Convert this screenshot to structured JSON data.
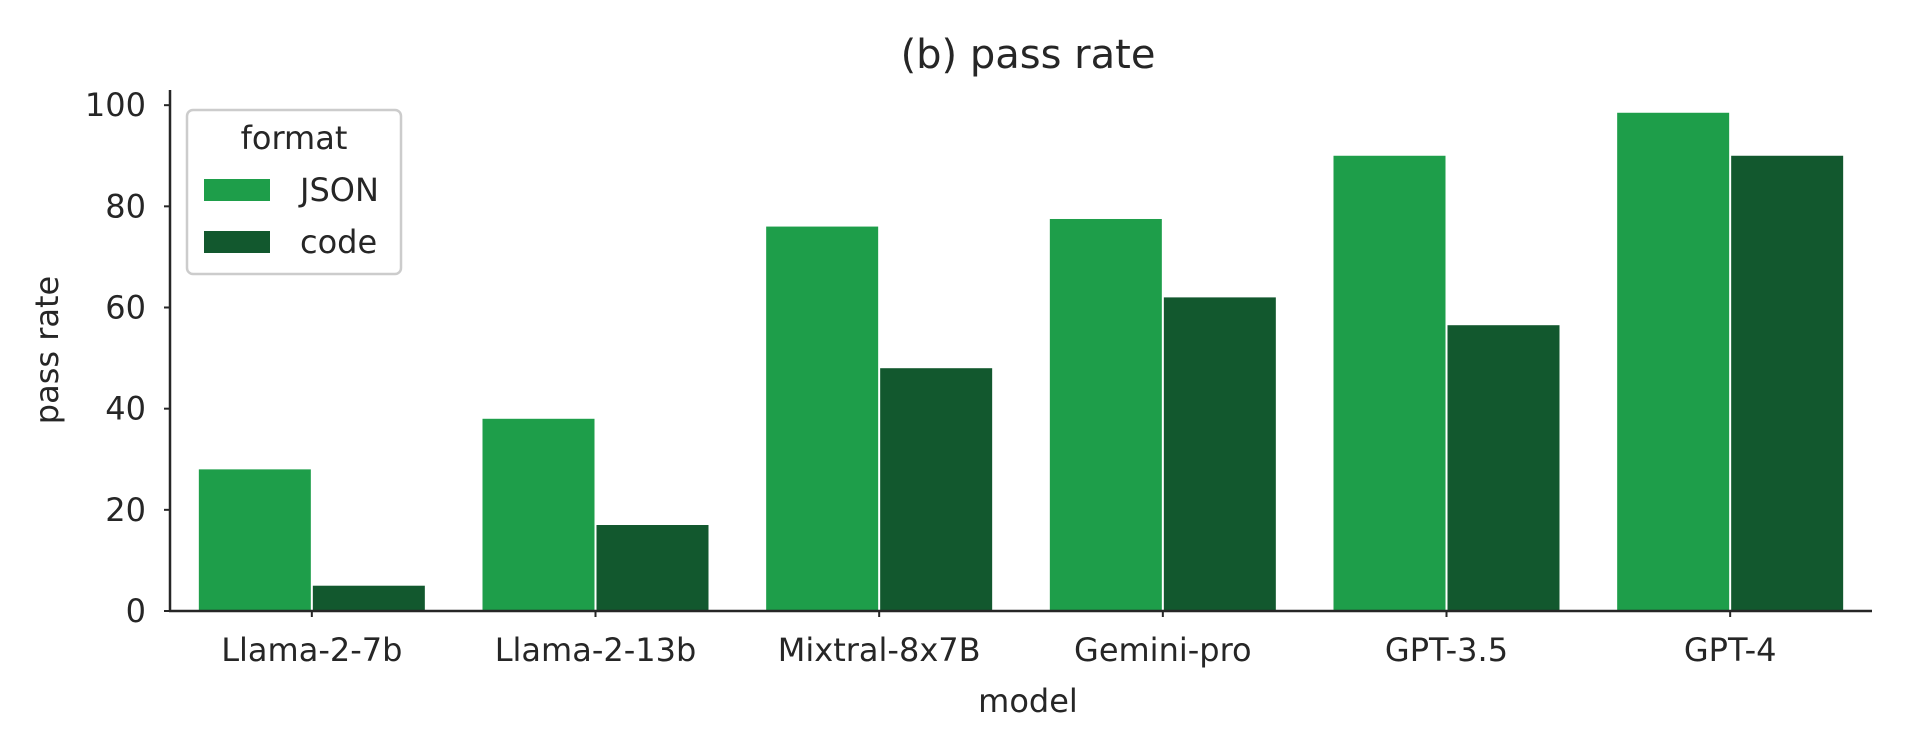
{
  "chart_data": {
    "type": "bar",
    "title": "(b) pass rate",
    "xlabel": "model",
    "ylabel": "pass rate",
    "categories": [
      "Llama-2-7b",
      "Llama-2-13b",
      "Mixtral-8x7B",
      "Gemini-pro",
      "GPT-3.5",
      "GPT-4"
    ],
    "series": [
      {
        "name": "JSON",
        "values": [
          28,
          38,
          76,
          77.5,
          90,
          98.5
        ],
        "color": "#1e9e4a"
      },
      {
        "name": "code",
        "values": [
          5,
          17,
          48,
          62,
          56.5,
          90
        ],
        "color": "#12582e"
      }
    ],
    "ylim": [
      0,
      103
    ],
    "yticks": [
      0,
      20,
      40,
      60,
      80,
      100
    ],
    "grid": false,
    "legend": {
      "title": "format",
      "placement": "top-left"
    }
  }
}
